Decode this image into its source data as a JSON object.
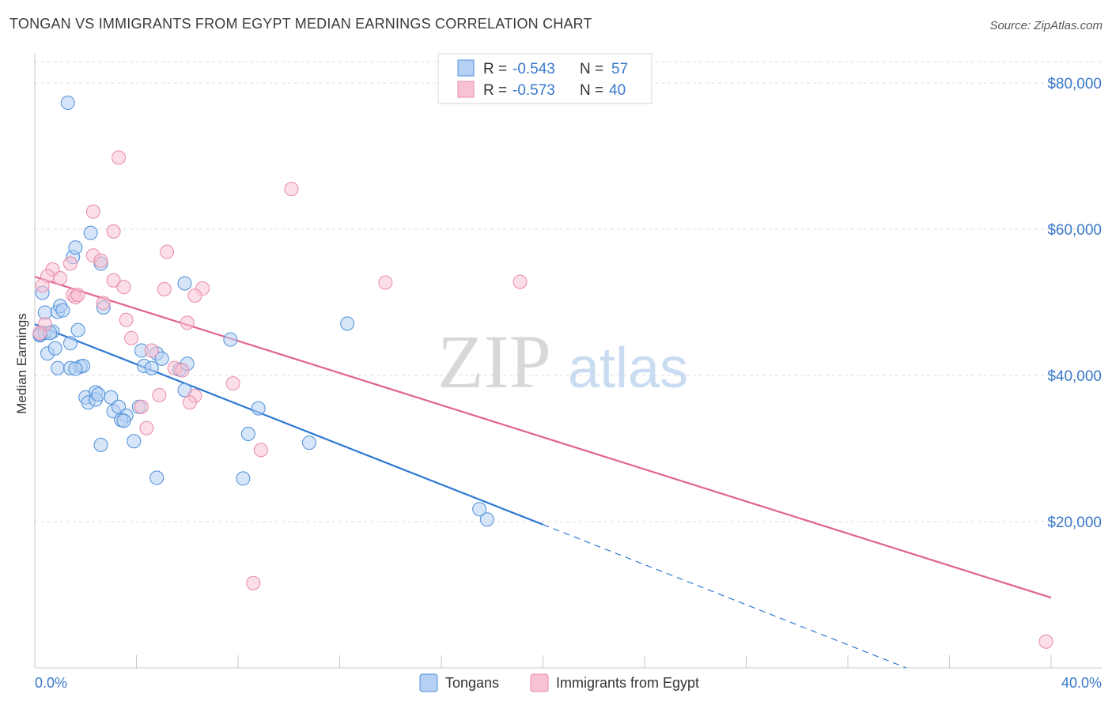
{
  "header": {
    "title": "TONGAN VS IMMIGRANTS FROM EGYPT MEDIAN EARNINGS CORRELATION CHART",
    "source": "Source: ZipAtlas.com"
  },
  "watermark": {
    "zip": "ZIP",
    "atlas": "atlas"
  },
  "colors": {
    "blue": "#4d8fd9",
    "blue_fill": "#b5d0f3",
    "blue_line": "#2f78d4",
    "pink": "#e88aa8",
    "pink_fill": "#f7c3d3",
    "pink_line": "#e0648d",
    "axis_text": "#3a78c9",
    "grid": "#dcdcdc"
  },
  "legend_stats": {
    "r_label": "R =",
    "n_label": "N =",
    "rows": [
      {
        "r": "-0.543",
        "n": "57",
        "color": "blue"
      },
      {
        "r": "-0.573",
        "n": "40",
        "color": "pink"
      }
    ]
  },
  "chart_data": {
    "type": "scatter",
    "title": "TONGAN VS IMMIGRANTS FROM EGYPT MEDIAN EARNINGS CORRELATION CHART",
    "xlabel": "",
    "ylabel": "Median Earnings",
    "xlim": [
      0,
      40
    ],
    "ylim": [
      0,
      84000
    ],
    "x_tick_labels": [
      "0.0%",
      "40.0%"
    ],
    "y_ticks": [
      20000,
      40000,
      60000,
      80000
    ],
    "y_tick_labels": [
      "$20,000",
      "$40,000",
      "$60,000",
      "$80,000"
    ],
    "grid": true,
    "legend_position": "bottom-center",
    "series": [
      {
        "name": "Tongans",
        "color": "blue",
        "r": -0.543,
        "n": 57,
        "trend": {
          "x0": 0,
          "y0": 47000,
          "x1": 20,
          "y1": 19600,
          "dash_to_x": 34.3,
          "dash_to_y": 0
        },
        "points": [
          [
            1.3,
            77300
          ],
          [
            0.3,
            51300
          ],
          [
            0.4,
            48600
          ],
          [
            0.9,
            48700
          ],
          [
            1.0,
            49500
          ],
          [
            1.1,
            48900
          ],
          [
            0.2,
            45500
          ],
          [
            0.4,
            45800
          ],
          [
            0.7,
            46000
          ],
          [
            1.7,
            46200
          ],
          [
            1.4,
            44400
          ],
          [
            0.5,
            43000
          ],
          [
            0.8,
            43700
          ],
          [
            0.9,
            41000
          ],
          [
            1.4,
            41000
          ],
          [
            1.8,
            41200
          ],
          [
            1.9,
            41300
          ],
          [
            1.5,
            56200
          ],
          [
            2.2,
            59500
          ],
          [
            1.6,
            57500
          ],
          [
            2.6,
            55300
          ],
          [
            2.7,
            49300
          ],
          [
            2.0,
            37000
          ],
          [
            2.1,
            36300
          ],
          [
            2.4,
            37700
          ],
          [
            2.4,
            36700
          ],
          [
            2.5,
            37400
          ],
          [
            3.0,
            37000
          ],
          [
            3.1,
            35100
          ],
          [
            3.3,
            35700
          ],
          [
            3.6,
            34500
          ],
          [
            3.4,
            33900
          ],
          [
            4.1,
            35700
          ],
          [
            4.2,
            43400
          ],
          [
            4.3,
            41300
          ],
          [
            4.6,
            41000
          ],
          [
            4.8,
            43000
          ],
          [
            5.0,
            42300
          ],
          [
            5.7,
            40800
          ],
          [
            5.9,
            38000
          ],
          [
            6.0,
            41600
          ],
          [
            5.9,
            52600
          ],
          [
            7.7,
            44900
          ],
          [
            8.4,
            32000
          ],
          [
            8.8,
            35500
          ],
          [
            10.8,
            30800
          ],
          [
            12.3,
            47100
          ],
          [
            2.6,
            30500
          ],
          [
            3.9,
            31000
          ],
          [
            4.8,
            26000
          ],
          [
            8.2,
            25900
          ],
          [
            17.8,
            20300
          ],
          [
            17.5,
            21700
          ],
          [
            0.2,
            45600
          ],
          [
            0.6,
            45800
          ],
          [
            1.6,
            40900
          ],
          [
            3.5,
            33800
          ]
        ]
      },
      {
        "name": "Immigrants from Egypt",
        "color": "pink",
        "r": -0.573,
        "n": 40,
        "trend": {
          "x0": 0,
          "y0": 53500,
          "x1": 40,
          "y1": 9600
        },
        "points": [
          [
            3.3,
            69800
          ],
          [
            10.1,
            65500
          ],
          [
            2.3,
            62400
          ],
          [
            3.1,
            59700
          ],
          [
            5.2,
            56900
          ],
          [
            2.3,
            56400
          ],
          [
            2.6,
            55700
          ],
          [
            1.4,
            55300
          ],
          [
            0.7,
            54500
          ],
          [
            0.5,
            53600
          ],
          [
            1.0,
            53300
          ],
          [
            3.1,
            53000
          ],
          [
            3.5,
            52100
          ],
          [
            5.1,
            51800
          ],
          [
            6.6,
            51900
          ],
          [
            13.8,
            52700
          ],
          [
            19.1,
            52800
          ],
          [
            0.3,
            52300
          ],
          [
            1.5,
            51000
          ],
          [
            1.6,
            50700
          ],
          [
            2.7,
            49900
          ],
          [
            6.3,
            50900
          ],
          [
            3.6,
            47600
          ],
          [
            0.4,
            47000
          ],
          [
            6.0,
            47200
          ],
          [
            0.2,
            45800
          ],
          [
            3.8,
            45100
          ],
          [
            4.6,
            43400
          ],
          [
            5.5,
            41000
          ],
          [
            5.8,
            40700
          ],
          [
            4.9,
            37300
          ],
          [
            6.3,
            37200
          ],
          [
            6.1,
            36300
          ],
          [
            4.2,
            35700
          ],
          [
            7.8,
            38900
          ],
          [
            4.4,
            32800
          ],
          [
            8.9,
            29800
          ],
          [
            8.6,
            11600
          ],
          [
            1.7,
            51000
          ],
          [
            39.8,
            3600
          ]
        ]
      }
    ]
  },
  "bottom_legend": {
    "items": [
      "Tongans",
      "Immigrants from Egypt"
    ]
  }
}
